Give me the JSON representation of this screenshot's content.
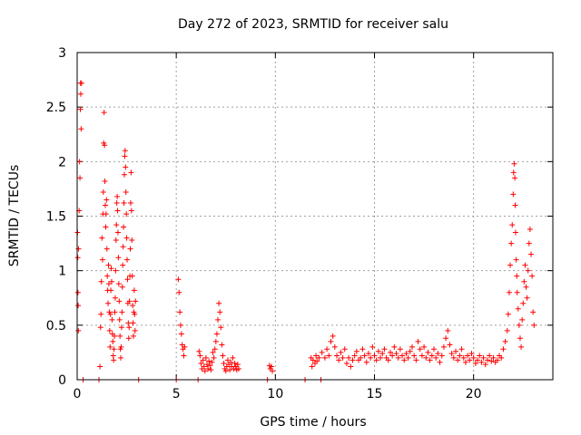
{
  "chart_data": {
    "type": "scatter",
    "title": "Day 272 of 2023, SRMTID for receiver salu",
    "xlabel": "GPS time / hours",
    "ylabel": "SRMTID / TECUs",
    "xlim": [
      0,
      24
    ],
    "ylim": [
      0,
      3
    ],
    "x_ticks": [
      0,
      5,
      10,
      15,
      20
    ],
    "x_tick_labels": [
      "0",
      "5",
      "10",
      "15",
      "20"
    ],
    "y_ticks": [
      0,
      0.5,
      1,
      1.5,
      2,
      2.5,
      3
    ],
    "y_tick_labels": [
      "0",
      "0.5",
      "1",
      "1.5",
      "2",
      "2.5",
      "3"
    ],
    "grid": true,
    "marker": "+",
    "color": "#ff0000",
    "series": [
      {
        "name": "SRMTID",
        "points": [
          [
            0.02,
            1.35
          ],
          [
            0.03,
            1.12
          ],
          [
            0.04,
            0.8
          ],
          [
            0.05,
            0.68
          ],
          [
            0.06,
            0.45
          ],
          [
            0.07,
            1.2
          ],
          [
            0.1,
            1.55
          ],
          [
            0.12,
            2.0
          ],
          [
            0.14,
            1.85
          ],
          [
            0.16,
            2.48
          ],
          [
            0.17,
            2.72
          ],
          [
            0.18,
            2.62
          ],
          [
            0.2,
            2.3
          ],
          [
            0.22,
            2.72
          ],
          [
            0.3,
            0.0
          ],
          [
            1.1,
            0.0
          ],
          [
            1.15,
            0.12
          ],
          [
            1.18,
            0.48
          ],
          [
            1.2,
            0.6
          ],
          [
            1.22,
            0.9
          ],
          [
            1.25,
            1.3
          ],
          [
            1.28,
            1.1
          ],
          [
            1.3,
            1.52
          ],
          [
            1.32,
            1.72
          ],
          [
            1.34,
            2.17
          ],
          [
            1.36,
            2.45
          ],
          [
            1.38,
            2.15
          ],
          [
            1.4,
            1.82
          ],
          [
            1.42,
            1.6
          ],
          [
            1.44,
            1.4
          ],
          [
            1.46,
            1.52
          ],
          [
            1.48,
            1.65
          ],
          [
            1.5,
            1.2
          ],
          [
            1.52,
            0.95
          ],
          [
            1.54,
            0.82
          ],
          [
            1.56,
            0.7
          ],
          [
            1.58,
            1.05
          ],
          [
            1.6,
            0.88
          ],
          [
            1.62,
            0.62
          ],
          [
            1.64,
            0.45
          ],
          [
            1.66,
            0.3
          ],
          [
            1.68,
            0.6
          ],
          [
            1.7,
            0.82
          ],
          [
            1.72,
            1.02
          ],
          [
            1.74,
            0.9
          ],
          [
            1.76,
            0.55
          ],
          [
            1.78,
            0.42
          ],
          [
            1.8,
            0.35
          ],
          [
            1.82,
            0.22
          ],
          [
            1.84,
            0.18
          ],
          [
            1.86,
            0.28
          ],
          [
            1.88,
            0.4
          ],
          [
            1.9,
            0.62
          ],
          [
            1.92,
            0.75
          ],
          [
            1.94,
            1.0
          ],
          [
            1.96,
            1.28
          ],
          [
            1.98,
            1.42
          ],
          [
            2.0,
            1.62
          ],
          [
            2.02,
            1.68
          ],
          [
            2.04,
            1.55
          ],
          [
            2.06,
            1.35
          ],
          [
            2.08,
            1.12
          ],
          [
            2.1,
            0.88
          ],
          [
            2.12,
            0.72
          ],
          [
            2.14,
            0.55
          ],
          [
            2.16,
            0.4
          ],
          [
            2.18,
            0.28
          ],
          [
            2.2,
            0.2
          ],
          [
            2.22,
            0.3
          ],
          [
            2.24,
            0.48
          ],
          [
            2.26,
            0.62
          ],
          [
            2.28,
            0.85
          ],
          [
            2.3,
            1.05
          ],
          [
            2.32,
            1.22
          ],
          [
            2.34,
            1.4
          ],
          [
            2.36,
            1.62
          ],
          [
            2.38,
            1.88
          ],
          [
            2.4,
            2.05
          ],
          [
            2.42,
            2.1
          ],
          [
            2.44,
            1.95
          ],
          [
            2.46,
            1.72
          ],
          [
            2.48,
            1.52
          ],
          [
            2.5,
            1.3
          ],
          [
            2.52,
            1.1
          ],
          [
            2.54,
            0.92
          ],
          [
            2.56,
            0.7
          ],
          [
            2.58,
            0.52
          ],
          [
            2.6,
            0.38
          ],
          [
            2.62,
            0.48
          ],
          [
            2.64,
            0.72
          ],
          [
            2.66,
            0.95
          ],
          [
            2.68,
            1.2
          ],
          [
            2.7,
            1.62
          ],
          [
            2.72,
            1.9
          ],
          [
            2.74,
            1.55
          ],
          [
            2.76,
            1.28
          ],
          [
            2.78,
            0.95
          ],
          [
            2.8,
            0.68
          ],
          [
            2.82,
            0.52
          ],
          [
            2.84,
            0.4
          ],
          [
            2.86,
            0.62
          ],
          [
            2.88,
            0.82
          ],
          [
            2.9,
            0.6
          ],
          [
            2.92,
            0.45
          ],
          [
            2.94,
            0.72
          ],
          [
            3.1,
            0.0
          ],
          [
            5.0,
            0.0
          ],
          [
            5.1,
            0.92
          ],
          [
            5.14,
            0.8
          ],
          [
            5.18,
            0.62
          ],
          [
            5.22,
            0.5
          ],
          [
            5.26,
            0.42
          ],
          [
            5.3,
            0.32
          ],
          [
            5.34,
            0.28
          ],
          [
            5.38,
            0.22
          ],
          [
            5.42,
            0.3
          ],
          [
            6.1,
            0.0
          ],
          [
            6.15,
            0.26
          ],
          [
            6.2,
            0.22
          ],
          [
            6.25,
            0.15
          ],
          [
            6.3,
            0.1
          ],
          [
            6.35,
            0.18
          ],
          [
            6.4,
            0.12
          ],
          [
            6.45,
            0.08
          ],
          [
            6.5,
            0.2
          ],
          [
            6.55,
            0.14
          ],
          [
            6.6,
            0.1
          ],
          [
            6.65,
            0.17
          ],
          [
            6.7,
            0.13
          ],
          [
            6.75,
            0.09
          ],
          [
            6.8,
            0.16
          ],
          [
            6.85,
            0.25
          ],
          [
            6.9,
            0.2
          ],
          [
            6.95,
            0.28
          ],
          [
            7.0,
            0.35
          ],
          [
            7.05,
            0.42
          ],
          [
            7.1,
            0.55
          ],
          [
            7.15,
            0.7
          ],
          [
            7.2,
            0.62
          ],
          [
            7.25,
            0.48
          ],
          [
            7.3,
            0.32
          ],
          [
            7.35,
            0.22
          ],
          [
            7.4,
            0.15
          ],
          [
            7.45,
            0.1
          ],
          [
            7.5,
            0.08
          ],
          [
            7.55,
            0.12
          ],
          [
            7.6,
            0.18
          ],
          [
            7.65,
            0.14
          ],
          [
            7.7,
            0.09
          ],
          [
            7.75,
            0.16
          ],
          [
            7.8,
            0.12
          ],
          [
            7.85,
            0.2
          ],
          [
            7.9,
            0.1
          ],
          [
            7.95,
            0.15
          ],
          [
            8.0,
            0.12
          ],
          [
            8.05,
            0.09
          ],
          [
            8.1,
            0.14
          ],
          [
            8.15,
            0.1
          ],
          [
            9.6,
            0.0
          ],
          [
            9.7,
            0.13
          ],
          [
            9.75,
            0.1
          ],
          [
            9.8,
            0.12
          ],
          [
            9.85,
            0.08
          ],
          [
            11.5,
            0.0
          ],
          [
            11.8,
            0.2
          ],
          [
            11.85,
            0.12
          ],
          [
            11.9,
            0.18
          ],
          [
            12.0,
            0.15
          ],
          [
            12.05,
            0.22
          ],
          [
            12.1,
            0.17
          ],
          [
            12.2,
            0.2
          ],
          [
            12.3,
            0.0
          ],
          [
            12.35,
            0.25
          ],
          [
            12.5,
            0.2
          ],
          [
            12.6,
            0.28
          ],
          [
            12.7,
            0.22
          ],
          [
            12.8,
            0.35
          ],
          [
            12.9,
            0.4
          ],
          [
            13.0,
            0.3
          ],
          [
            13.1,
            0.22
          ],
          [
            13.2,
            0.18
          ],
          [
            13.3,
            0.25
          ],
          [
            13.4,
            0.2
          ],
          [
            13.5,
            0.28
          ],
          [
            13.6,
            0.15
          ],
          [
            13.7,
            0.2
          ],
          [
            13.8,
            0.12
          ],
          [
            13.9,
            0.18
          ],
          [
            14.0,
            0.22
          ],
          [
            14.1,
            0.26
          ],
          [
            14.2,
            0.18
          ],
          [
            14.3,
            0.2
          ],
          [
            14.4,
            0.28
          ],
          [
            14.5,
            0.22
          ],
          [
            14.6,
            0.16
          ],
          [
            14.7,
            0.24
          ],
          [
            14.8,
            0.2
          ],
          [
            14.9,
            0.3
          ],
          [
            15.0,
            0.22
          ],
          [
            15.1,
            0.18
          ],
          [
            15.2,
            0.26
          ],
          [
            15.3,
            0.2
          ],
          [
            15.4,
            0.24
          ],
          [
            15.5,
            0.28
          ],
          [
            15.6,
            0.2
          ],
          [
            15.7,
            0.18
          ],
          [
            15.8,
            0.25
          ],
          [
            15.9,
            0.22
          ],
          [
            16.0,
            0.3
          ],
          [
            16.1,
            0.24
          ],
          [
            16.2,
            0.2
          ],
          [
            16.3,
            0.28
          ],
          [
            16.4,
            0.22
          ],
          [
            16.5,
            0.18
          ],
          [
            16.6,
            0.24
          ],
          [
            16.7,
            0.2
          ],
          [
            16.8,
            0.26
          ],
          [
            16.9,
            0.3
          ],
          [
            17.0,
            0.22
          ],
          [
            17.1,
            0.18
          ],
          [
            17.2,
            0.35
          ],
          [
            17.3,
            0.28
          ],
          [
            17.4,
            0.22
          ],
          [
            17.5,
            0.3
          ],
          [
            17.6,
            0.2
          ],
          [
            17.7,
            0.25
          ],
          [
            17.8,
            0.18
          ],
          [
            17.9,
            0.22
          ],
          [
            18.0,
            0.28
          ],
          [
            18.1,
            0.2
          ],
          [
            18.2,
            0.24
          ],
          [
            18.3,
            0.16
          ],
          [
            18.4,
            0.22
          ],
          [
            18.5,
            0.3
          ],
          [
            18.6,
            0.38
          ],
          [
            18.7,
            0.45
          ],
          [
            18.8,
            0.32
          ],
          [
            18.9,
            0.24
          ],
          [
            19.0,
            0.2
          ],
          [
            19.1,
            0.26
          ],
          [
            19.2,
            0.18
          ],
          [
            19.3,
            0.22
          ],
          [
            19.4,
            0.28
          ],
          [
            19.5,
            0.2
          ],
          [
            19.6,
            0.16
          ],
          [
            19.7,
            0.22
          ],
          [
            19.8,
            0.18
          ],
          [
            19.9,
            0.24
          ],
          [
            20.0,
            0.2
          ],
          [
            20.1,
            0.15
          ],
          [
            20.2,
            0.18
          ],
          [
            20.3,
            0.22
          ],
          [
            20.4,
            0.16
          ],
          [
            20.5,
            0.2
          ],
          [
            20.6,
            0.14
          ],
          [
            20.7,
            0.18
          ],
          [
            20.8,
            0.22
          ],
          [
            20.9,
            0.17
          ],
          [
            21.0,
            0.2
          ],
          [
            21.1,
            0.16
          ],
          [
            21.2,
            0.18
          ],
          [
            21.3,
            0.22
          ],
          [
            21.4,
            0.2
          ],
          [
            21.5,
            0.28
          ],
          [
            21.6,
            0.35
          ],
          [
            21.7,
            0.45
          ],
          [
            21.75,
            0.6
          ],
          [
            21.8,
            0.8
          ],
          [
            21.85,
            1.05
          ],
          [
            21.9,
            1.25
          ],
          [
            21.95,
            1.42
          ],
          [
            22.0,
            1.7
          ],
          [
            22.02,
            1.9
          ],
          [
            22.05,
            1.98
          ],
          [
            22.08,
            1.85
          ],
          [
            22.1,
            1.6
          ],
          [
            22.12,
            1.35
          ],
          [
            22.15,
            1.1
          ],
          [
            22.18,
            0.95
          ],
          [
            22.2,
            0.8
          ],
          [
            22.25,
            0.65
          ],
          [
            22.3,
            0.5
          ],
          [
            22.35,
            0.38
          ],
          [
            22.4,
            0.3
          ],
          [
            22.45,
            0.55
          ],
          [
            22.5,
            0.7
          ],
          [
            22.55,
            0.9
          ],
          [
            22.6,
            1.05
          ],
          [
            22.65,
            0.85
          ],
          [
            22.7,
            0.75
          ],
          [
            22.75,
            1.0
          ],
          [
            22.8,
            1.25
          ],
          [
            22.85,
            1.38
          ],
          [
            22.9,
            1.15
          ],
          [
            22.95,
            0.95
          ],
          [
            23.0,
            0.62
          ],
          [
            23.05,
            0.5
          ]
        ]
      }
    ]
  }
}
